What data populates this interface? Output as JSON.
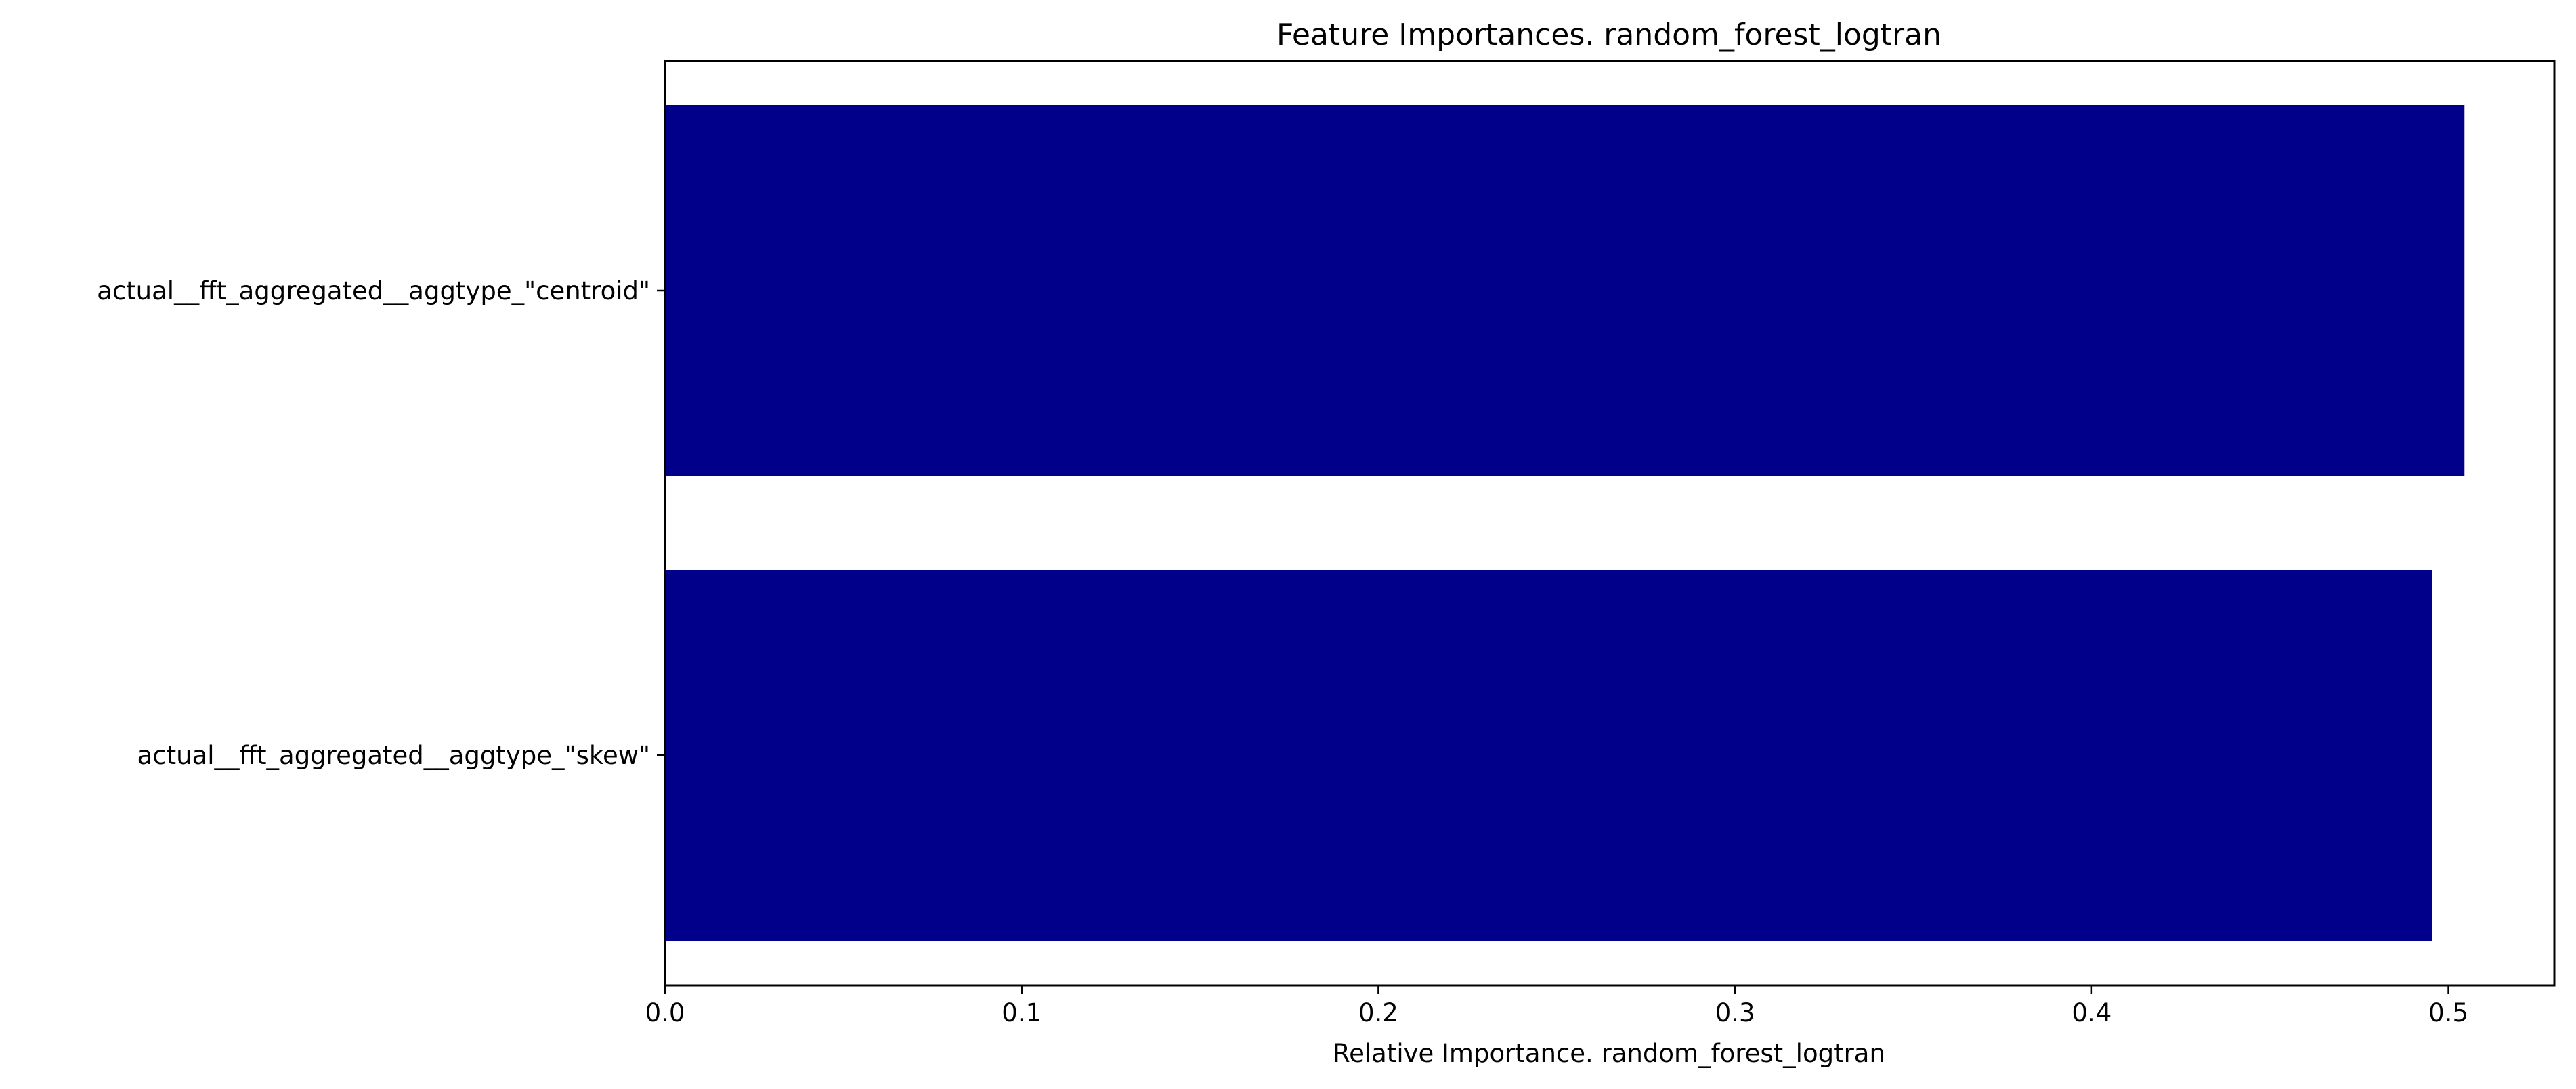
{
  "chart_data": {
    "type": "bar",
    "orientation": "horizontal",
    "title": "Feature Importances. random_forest_logtran",
    "xlabel": "Relative Importance. random_forest_logtran",
    "ylabel": "",
    "categories": [
      "actual__fft_aggregated__aggtype_\"centroid\"",
      "actual__fft_aggregated__aggtype_\"skew\""
    ],
    "values": [
      0.5045,
      0.4955
    ],
    "xlim": [
      0,
      0.5297
    ],
    "xticks": [
      0,
      0.1,
      0.2,
      0.3,
      0.4,
      0.5
    ],
    "xtick_labels": [
      "0.0",
      "0.1",
      "0.2",
      "0.3",
      "0.4",
      "0.5"
    ],
    "bar_color": "#00008b",
    "grid": false,
    "legend": "none"
  }
}
